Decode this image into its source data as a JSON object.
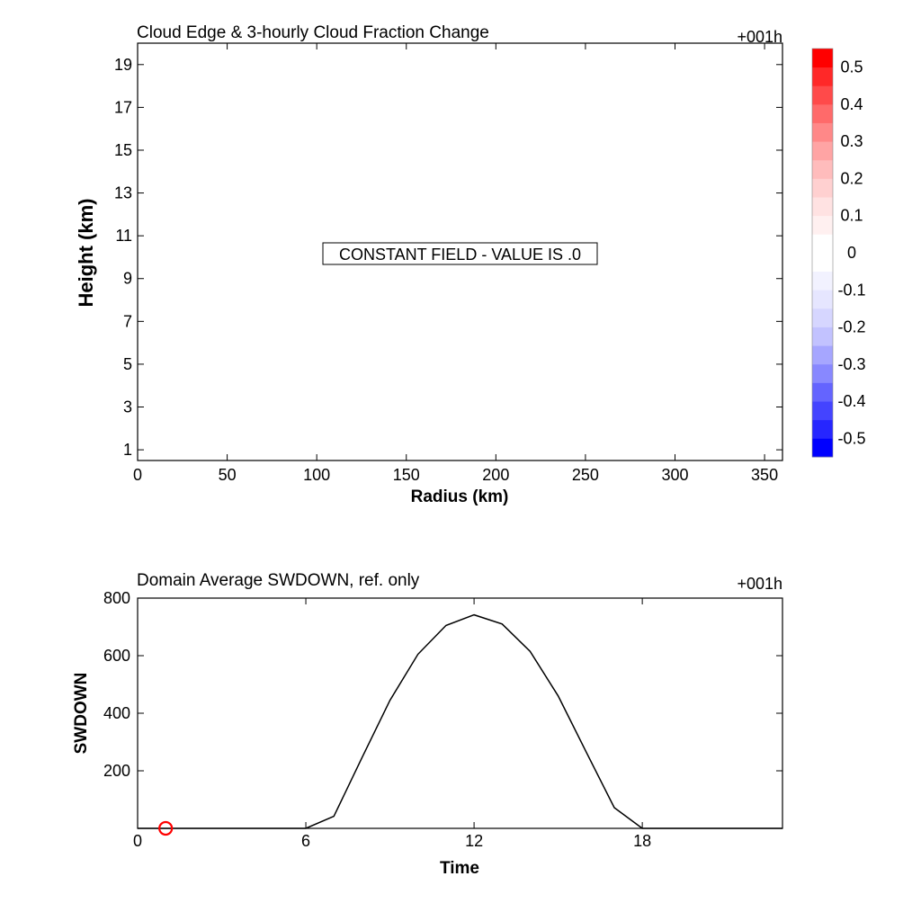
{
  "chart_data": [
    {
      "type": "heatmap",
      "title": "Cloud Edge & 3-hourly Cloud Fraction Change",
      "time_tag": "+001h",
      "xlabel": "Radius (km)",
      "ylabel": "Height (km)",
      "xlim": [
        0,
        360
      ],
      "ylim": [
        0.5,
        20
      ],
      "xticks": [
        0,
        50,
        100,
        150,
        200,
        250,
        300,
        350
      ],
      "yticks": [
        1,
        3,
        5,
        7,
        9,
        11,
        13,
        15,
        17,
        19
      ],
      "annotation": "CONSTANT FIELD - VALUE IS .0",
      "colorbar": {
        "min": -0.55,
        "max": 0.55,
        "labels": [
          "0.5",
          "0.4",
          "0.3",
          "0.2",
          "0.1",
          "0",
          "-0.1",
          "-0.2",
          "-0.3",
          "-0.4",
          "-0.5"
        ],
        "label_values": [
          0.5,
          0.4,
          0.3,
          0.2,
          0.1,
          0,
          -0.1,
          -0.2,
          -0.3,
          -0.4,
          -0.5
        ],
        "colors": [
          "#0000ff",
          "#2626ff",
          "#4444ff",
          "#6464ff",
          "#8888ff",
          "#a6a6ff",
          "#c2c2ff",
          "#d6d6ff",
          "#e6e6ff",
          "#f2f2ff",
          "#ffffff",
          "#ffffff",
          "#fff0f0",
          "#ffe2e2",
          "#ffd0d0",
          "#ffbcbc",
          "#ffa4a4",
          "#ff8888",
          "#ff6a6a",
          "#ff4a4a",
          "#ff2828",
          "#ff0000"
        ]
      }
    },
    {
      "type": "line",
      "title": "Domain Average SWDOWN, ref. only",
      "time_tag": "+001h",
      "xlabel": "Time",
      "ylabel": "SWDOWN",
      "xlim": [
        0,
        23
      ],
      "ylim": [
        0,
        800
      ],
      "xticks": [
        0,
        6,
        12,
        18
      ],
      "yticks": [
        200,
        400,
        600,
        800
      ],
      "series": [
        {
          "x": [
            0,
            1,
            2,
            3,
            4,
            5,
            6,
            7,
            8,
            9,
            10,
            11,
            12,
            13,
            14,
            15,
            16,
            17,
            18,
            19,
            20,
            21,
            22,
            23
          ],
          "values": [
            0,
            0,
            0,
            0,
            0,
            0,
            0,
            42,
            245,
            445,
            605,
            705,
            742,
            710,
            615,
            460,
            265,
            72,
            0,
            0,
            0,
            0,
            0,
            0
          ]
        }
      ],
      "marker": {
        "x": 1,
        "y": 0,
        "color": "#ff0000"
      }
    }
  ]
}
